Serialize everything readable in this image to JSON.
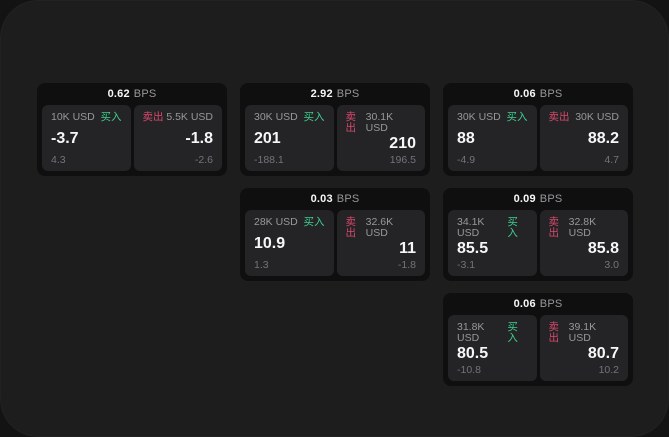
{
  "colors": {
    "outer_bg": "#131314",
    "panel_bg": "#1d1d1e",
    "card_bg": "#0f0f10",
    "tile_bg": "#242427",
    "text_primary": "#f7f7f7",
    "text_secondary": "#97989a",
    "text_tertiary": "#737478",
    "buy_green": "#3ecf8e",
    "sell_red": "#d8486a"
  },
  "labels": {
    "bps_unit": "BPS",
    "buy": "买入",
    "sell": "卖出"
  },
  "cards": [
    {
      "row": 1,
      "col": 1,
      "bps": "0.62",
      "buy": {
        "amount": "10K USD",
        "value": "-3.7",
        "delta": "4.3"
      },
      "sell": {
        "amount": "5.5K USD",
        "value": "-1.8",
        "delta": "-2.6"
      }
    },
    {
      "row": 1,
      "col": 2,
      "bps": "2.92",
      "buy": {
        "amount": "30K USD",
        "value": "201",
        "delta": "-188.1"
      },
      "sell": {
        "amount": "30.1K USD",
        "value": "210",
        "delta": "196.5"
      }
    },
    {
      "row": 1,
      "col": 3,
      "bps": "0.06",
      "buy": {
        "amount": "30K USD",
        "value": "88",
        "delta": "-4.9"
      },
      "sell": {
        "amount": "30K USD",
        "value": "88.2",
        "delta": "4.7"
      }
    },
    {
      "row": 2,
      "col": 2,
      "bps": "0.03",
      "buy": {
        "amount": "28K USD",
        "value": "10.9",
        "delta": "1.3"
      },
      "sell": {
        "amount": "32.6K USD",
        "value": "11",
        "delta": "-1.8"
      }
    },
    {
      "row": 2,
      "col": 3,
      "bps": "0.09",
      "buy": {
        "amount": "34.1K USD",
        "value": "85.5",
        "delta": "-3.1"
      },
      "sell": {
        "amount": "32.8K USD",
        "value": "85.8",
        "delta": "3.0"
      }
    },
    {
      "row": 3,
      "col": 3,
      "bps": "0.06",
      "buy": {
        "amount": "31.8K USD",
        "value": "80.5",
        "delta": "-10.8"
      },
      "sell": {
        "amount": "39.1K USD",
        "value": "80.7",
        "delta": "10.2"
      }
    }
  ]
}
